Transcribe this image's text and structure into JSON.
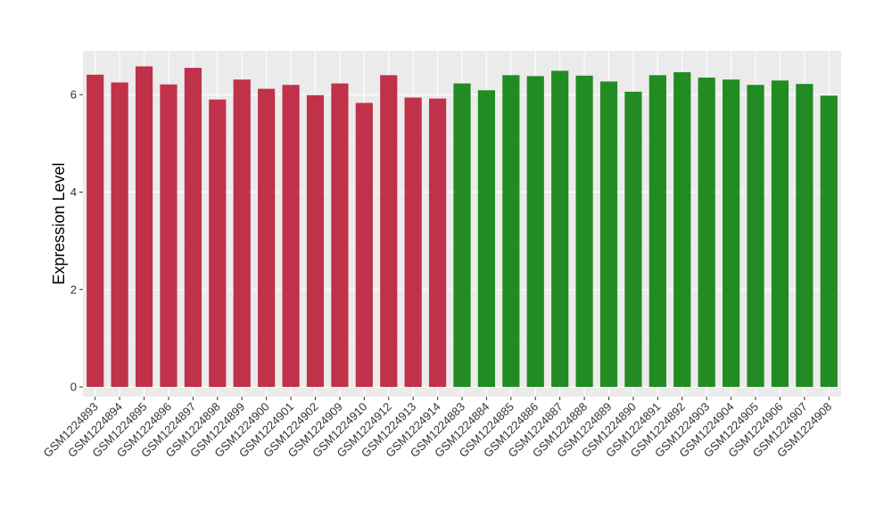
{
  "chart_data": {
    "type": "bar",
    "ylabel": "Expression Level",
    "xlabel": "",
    "ylim": [
      -0.2,
      6.9
    ],
    "yticks": [
      0,
      2,
      4,
      6
    ],
    "grid": true,
    "panel_background": "#EBEBEB",
    "categories": [
      "GSM1224893",
      "GSM1224894",
      "GSM1224895",
      "GSM1224896",
      "GSM1224897",
      "GSM1224898",
      "GSM1224899",
      "GSM1224900",
      "GSM1224901",
      "GSM1224902",
      "GSM1224909",
      "GSM1224910",
      "GSM1224912",
      "GSM1224913",
      "GSM1224914",
      "GSM1224883",
      "GSM1224884",
      "GSM1224885",
      "GSM1224886",
      "GSM1224887",
      "GSM1224888",
      "GSM1224889",
      "GSM1224890",
      "GSM1224891",
      "GSM1224892",
      "GSM1224903",
      "GSM1224904",
      "GSM1224905",
      "GSM1224906",
      "GSM1224907",
      "GSM1224908"
    ],
    "values": [
      6.41,
      6.25,
      6.58,
      6.21,
      6.55,
      5.9,
      6.31,
      6.12,
      6.2,
      5.99,
      6.23,
      5.83,
      6.4,
      5.94,
      5.92,
      6.23,
      6.09,
      6.4,
      6.38,
      6.49,
      6.39,
      6.27,
      6.06,
      6.4,
      6.46,
      6.35,
      6.31,
      6.2,
      6.29,
      6.22,
      5.98
    ],
    "groups": [
      {
        "color": "#C0314A",
        "count": 15
      },
      {
        "color": "#228B22",
        "count": 16
      }
    ]
  }
}
